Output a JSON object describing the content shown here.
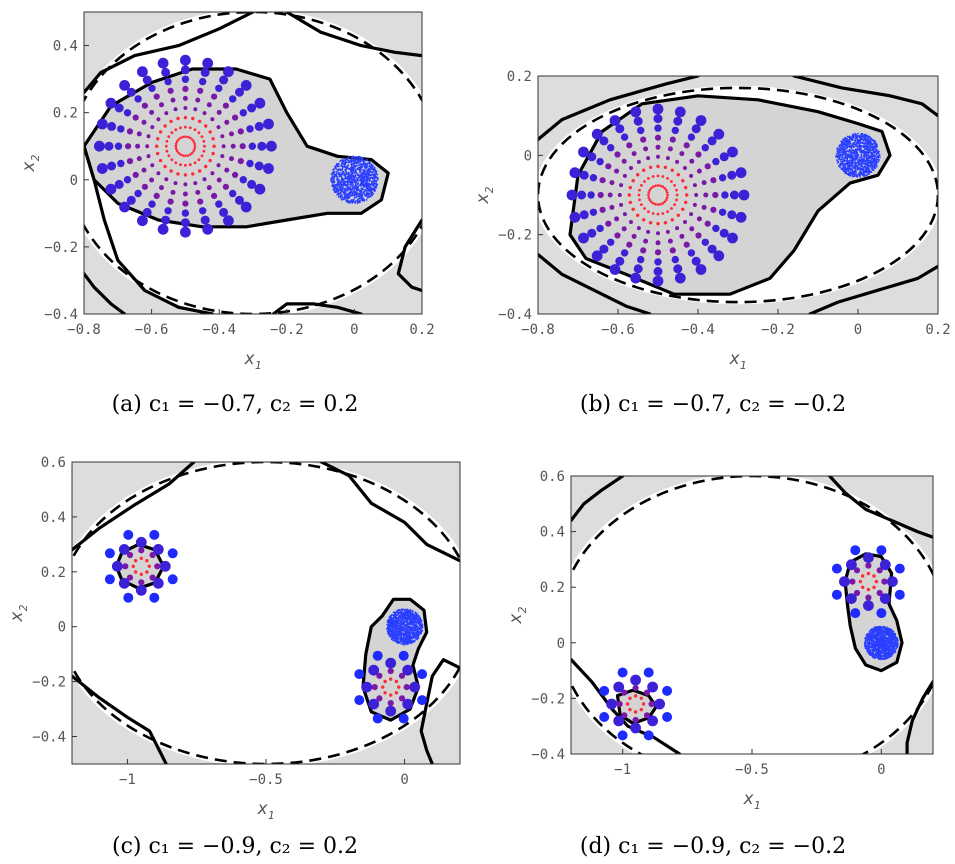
{
  "chart_data": [
    {
      "type": "scatter",
      "panel_label": "(a)",
      "caption": "(a) c₁ = −0.7, c₂ = 0.2",
      "xlabel": "x1",
      "ylabel": "x2",
      "xlim": [
        -0.8,
        0.2
      ],
      "ylim": [
        -0.4,
        0.5
      ],
      "xticks": [
        "-0.8",
        "-0.6",
        "-0.4",
        "-0.2",
        "0",
        "0.2"
      ],
      "yticks": [
        "-0.4",
        "-0.2",
        "0",
        "0.2",
        "0.4"
      ],
      "equilibrium": [
        -0.5,
        0.1
      ],
      "origin_cloud": [
        0,
        0,
        0.07
      ],
      "ellipse": [
        -0.3,
        0.05,
        0.55,
        0.45
      ],
      "region": [
        [
          -0.8,
          0.1
        ],
        [
          -0.72,
          0.22
        ],
        [
          -0.6,
          0.29
        ],
        [
          -0.48,
          0.33
        ],
        [
          -0.35,
          0.33
        ],
        [
          -0.25,
          0.3
        ],
        [
          -0.2,
          0.2
        ],
        [
          -0.14,
          0.1
        ],
        [
          -0.05,
          0.07
        ],
        [
          0.05,
          0.06
        ],
        [
          0.1,
          0.02
        ],
        [
          0.08,
          -0.06
        ],
        [
          0.02,
          -0.1
        ],
        [
          -0.08,
          -0.1
        ],
        [
          -0.2,
          -0.12
        ],
        [
          -0.32,
          -0.14
        ],
        [
          -0.45,
          -0.14
        ],
        [
          -0.58,
          -0.12
        ],
        [
          -0.7,
          -0.07
        ],
        [
          -0.77,
          0.0
        ],
        [
          -0.8,
          0.1
        ]
      ],
      "boundaries": [
        [
          [
            -0.8,
            0.26
          ],
          [
            -0.75,
            0.32
          ],
          [
            -0.65,
            0.37
          ],
          [
            -0.52,
            0.4
          ],
          [
            -0.4,
            0.45
          ],
          [
            -0.3,
            0.5
          ]
        ],
        [
          [
            -0.2,
            0.5
          ],
          [
            -0.1,
            0.44
          ],
          [
            0.02,
            0.4
          ],
          [
            0.12,
            0.38
          ],
          [
            0.2,
            0.37
          ]
        ],
        [
          [
            -0.8,
            0.1
          ],
          [
            -0.77,
            0.0
          ],
          [
            -0.74,
            -0.12
          ],
          [
            -0.7,
            -0.24
          ],
          [
            -0.62,
            -0.33
          ],
          [
            -0.52,
            -0.38
          ],
          [
            -0.42,
            -0.4
          ]
        ],
        [
          [
            -0.24,
            -0.4
          ],
          [
            -0.2,
            -0.37
          ],
          [
            -0.12,
            -0.37
          ],
          [
            -0.05,
            -0.38
          ],
          [
            0.02,
            -0.4
          ]
        ],
        [
          [
            0.2,
            -0.12
          ],
          [
            0.15,
            -0.2
          ],
          [
            0.13,
            -0.28
          ],
          [
            0.17,
            -0.32
          ],
          [
            0.2,
            -0.33
          ]
        ],
        [
          [
            -0.8,
            -0.28
          ],
          [
            -0.77,
            -0.32
          ],
          [
            -0.72,
            -0.37
          ],
          [
            -0.68,
            -0.4
          ]
        ]
      ]
    },
    {
      "type": "scatter",
      "panel_label": "(b)",
      "caption": "(b) c₁ = −0.7, c₂ = −0.2",
      "xlabel": "x1",
      "ylabel": "x2",
      "xlim": [
        -0.8,
        0.2
      ],
      "ylim": [
        -0.4,
        0.2
      ],
      "xticks": [
        "-0.8",
        "-0.6",
        "-0.4",
        "-0.2",
        "0",
        "0.2"
      ],
      "yticks": [
        "-0.4",
        "-0.2",
        "0",
        "0.2"
      ],
      "equilibrium": [
        -0.5,
        -0.1
      ],
      "origin_cloud": [
        0,
        0,
        0.055
      ],
      "ellipse": [
        -0.3,
        -0.1,
        0.5,
        0.27
      ],
      "region": [
        [
          -0.72,
          -0.2
        ],
        [
          -0.7,
          -0.05
        ],
        [
          -0.64,
          0.06
        ],
        [
          -0.54,
          0.13
        ],
        [
          -0.4,
          0.15
        ],
        [
          -0.25,
          0.14
        ],
        [
          -0.1,
          0.11
        ],
        [
          0.0,
          0.08
        ],
        [
          0.06,
          0.06
        ],
        [
          0.08,
          0.0
        ],
        [
          0.05,
          -0.05
        ],
        [
          -0.02,
          -0.07
        ],
        [
          -0.1,
          -0.14
        ],
        [
          -0.16,
          -0.24
        ],
        [
          -0.22,
          -0.31
        ],
        [
          -0.32,
          -0.35
        ],
        [
          -0.46,
          -0.35
        ],
        [
          -0.58,
          -0.3
        ],
        [
          -0.68,
          -0.26
        ],
        [
          -0.72,
          -0.2
        ]
      ],
      "boundaries": [
        [
          [
            -0.8,
            0.04
          ],
          [
            -0.74,
            0.09
          ],
          [
            -0.62,
            0.14
          ],
          [
            -0.48,
            0.18
          ],
          [
            -0.4,
            0.2
          ]
        ],
        [
          [
            -0.16,
            0.2
          ],
          [
            -0.04,
            0.17
          ],
          [
            0.08,
            0.15
          ],
          [
            0.16,
            0.13
          ],
          [
            0.2,
            0.1
          ]
        ],
        [
          [
            -0.8,
            -0.25
          ],
          [
            -0.74,
            -0.3
          ],
          [
            -0.64,
            -0.35
          ],
          [
            -0.58,
            -0.38
          ],
          [
            -0.52,
            -0.4
          ]
        ],
        [
          [
            0.2,
            -0.28
          ],
          [
            0.15,
            -0.31
          ],
          [
            0.05,
            -0.34
          ],
          [
            -0.05,
            -0.37
          ],
          [
            -0.12,
            -0.4
          ]
        ]
      ]
    },
    {
      "type": "scatter",
      "panel_label": "(c)",
      "caption": "(c) c₁ = −0.9, c₂ = 0.2",
      "xlabel": "x1",
      "ylabel": "x2",
      "xlim": [
        -1.2,
        0.2
      ],
      "ylim": [
        -0.5,
        0.6
      ],
      "xticks": [
        "-1",
        "-0.5",
        "0"
      ],
      "xtick_values": [
        -1,
        -0.5,
        0
      ],
      "yticks": [
        "-0.4",
        "-0.2",
        "0",
        "0.2",
        "0.4",
        "0.6"
      ],
      "equilibria": [
        [
          -0.95,
          0.22
        ],
        [
          -0.05,
          -0.22
        ]
      ],
      "origin_cloud": [
        0,
        0,
        0.065
      ],
      "ellipse": [
        -0.5,
        0.05,
        0.75,
        0.55
      ],
      "regions": [
        [
          [
            -1.04,
            0.22
          ],
          [
            -1.02,
            0.27
          ],
          [
            -0.96,
            0.3
          ],
          [
            -0.9,
            0.28
          ],
          [
            -0.87,
            0.22
          ],
          [
            -0.9,
            0.16
          ],
          [
            -0.96,
            0.14
          ],
          [
            -1.02,
            0.17
          ],
          [
            -1.04,
            0.22
          ]
        ],
        [
          [
            -0.08,
            0.04
          ],
          [
            -0.04,
            0.1
          ],
          [
            0.02,
            0.1
          ],
          [
            0.07,
            0.06
          ],
          [
            0.08,
            -0.02
          ],
          [
            0.05,
            -0.08
          ],
          [
            0.03,
            -0.14
          ],
          [
            0.05,
            -0.22
          ],
          [
            0.02,
            -0.3
          ],
          [
            -0.05,
            -0.34
          ],
          [
            -0.12,
            -0.31
          ],
          [
            -0.15,
            -0.22
          ],
          [
            -0.14,
            -0.1
          ],
          [
            -0.12,
            0.0
          ],
          [
            -0.08,
            0.04
          ]
        ]
      ],
      "boundaries": [
        [
          [
            -1.2,
            0.28
          ],
          [
            -1.1,
            0.36
          ],
          [
            -0.98,
            0.44
          ],
          [
            -0.85,
            0.52
          ],
          [
            -0.76,
            0.6
          ]
        ],
        [
          [
            -0.3,
            0.6
          ],
          [
            -0.2,
            0.55
          ],
          [
            -0.12,
            0.45
          ],
          [
            0.0,
            0.38
          ],
          [
            0.08,
            0.3
          ],
          [
            0.2,
            0.24
          ]
        ],
        [
          [
            -1.2,
            -0.18
          ],
          [
            -1.1,
            -0.26
          ],
          [
            -1.0,
            -0.33
          ],
          [
            -0.92,
            -0.38
          ],
          [
            -0.86,
            -0.5
          ]
        ],
        [
          [
            0.2,
            -0.15
          ],
          [
            0.14,
            -0.12
          ],
          [
            0.1,
            -0.18
          ],
          [
            0.08,
            -0.28
          ],
          [
            0.06,
            -0.38
          ],
          [
            0.08,
            -0.45
          ],
          [
            0.1,
            -0.5
          ]
        ]
      ]
    },
    {
      "type": "scatter",
      "panel_label": "(d)",
      "caption": "(d) c₁ = −0.9, c₂ = −0.2",
      "xlabel": "x1",
      "ylabel": "x2",
      "xlim": [
        -1.2,
        0.2
      ],
      "ylim": [
        -0.4,
        0.6
      ],
      "xticks": [
        "-1",
        "-0.5",
        "0"
      ],
      "xtick_values": [
        -1,
        -0.5,
        0
      ],
      "yticks": [
        "-0.4",
        "-0.2",
        "0",
        "0.2",
        "0.4",
        "0.6"
      ],
      "equilibria": [
        [
          -0.95,
          -0.22
        ],
        [
          -0.05,
          0.22
        ]
      ],
      "origin_cloud": [
        0,
        0,
        0.065
      ],
      "ellipse": [
        -0.5,
        0.05,
        0.75,
        0.55
      ],
      "regions": [
        [
          [
            -1.02,
            -0.19
          ],
          [
            -0.96,
            -0.17
          ],
          [
            -0.9,
            -0.19
          ],
          [
            -0.87,
            -0.23
          ],
          [
            -0.9,
            -0.27
          ],
          [
            -0.96,
            -0.29
          ],
          [
            -1.01,
            -0.26
          ],
          [
            -1.02,
            -0.19
          ]
        ],
        [
          [
            -0.14,
            0.22
          ],
          [
            -0.12,
            0.29
          ],
          [
            -0.06,
            0.32
          ],
          [
            0.0,
            0.31
          ],
          [
            0.04,
            0.25
          ],
          [
            0.03,
            0.14
          ],
          [
            0.06,
            0.08
          ],
          [
            0.08,
            0.0
          ],
          [
            0.06,
            -0.07
          ],
          [
            0.0,
            -0.1
          ],
          [
            -0.06,
            -0.08
          ],
          [
            -0.1,
            -0.02
          ],
          [
            -0.12,
            0.06
          ],
          [
            -0.13,
            0.13
          ],
          [
            -0.14,
            0.22
          ]
        ]
      ],
      "boundaries": [
        [
          [
            -1.2,
            0.44
          ],
          [
            -1.15,
            0.5
          ],
          [
            -1.08,
            0.55
          ],
          [
            -1.0,
            0.6
          ]
        ],
        [
          [
            -0.2,
            0.6
          ],
          [
            -0.14,
            0.54
          ],
          [
            -0.06,
            0.48
          ],
          [
            0.04,
            0.44
          ],
          [
            0.14,
            0.4
          ],
          [
            0.2,
            0.38
          ]
        ],
        [
          [
            -1.2,
            -0.06
          ],
          [
            -1.12,
            -0.14
          ],
          [
            -1.04,
            -0.24
          ],
          [
            -0.98,
            -0.3
          ],
          [
            -0.88,
            -0.34
          ],
          [
            -0.78,
            -0.4
          ]
        ],
        [
          [
            0.2,
            -0.14
          ],
          [
            0.16,
            -0.2
          ],
          [
            0.12,
            -0.28
          ],
          [
            0.1,
            -0.36
          ],
          [
            0.1,
            -0.4
          ]
        ]
      ]
    }
  ]
}
